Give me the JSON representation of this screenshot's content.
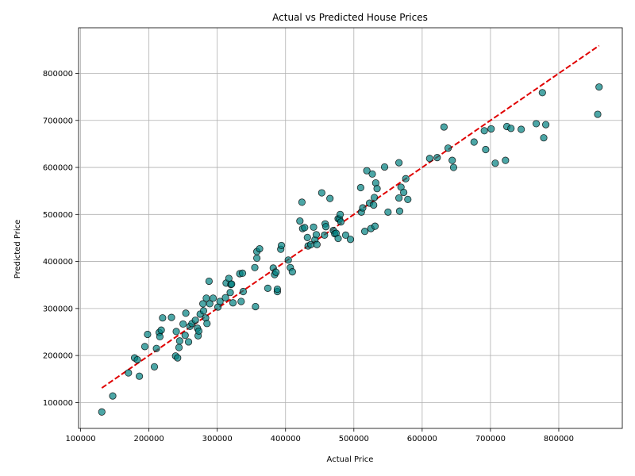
{
  "chart_data": {
    "type": "scatter",
    "title": "Actual vs Predicted House Prices",
    "xlabel": "Actual Price",
    "ylabel": "Predicted Price",
    "xlim": [
      97000,
      893000
    ],
    "ylim": [
      45000,
      897000
    ],
    "xticks": [
      100000,
      200000,
      300000,
      400000,
      500000,
      600000,
      700000,
      800000
    ],
    "yticks": [
      100000,
      200000,
      300000,
      400000,
      500000,
      600000,
      700000,
      800000
    ],
    "xtick_labels": [
      "100000",
      "200000",
      "300000",
      "400000",
      "500000",
      "600000",
      "700000",
      "800000"
    ],
    "ytick_labels": [
      "100000",
      "200000",
      "300000",
      "400000",
      "500000",
      "600000",
      "700000",
      "800000"
    ],
    "grid": true,
    "point_color": "#008080",
    "line_color": "#e00000",
    "reference_line": {
      "x": [
        131000,
        859000
      ],
      "y": [
        131000,
        859000
      ]
    },
    "points": [
      [
        131000,
        80000
      ],
      [
        147000,
        114000
      ],
      [
        170000,
        163000
      ],
      [
        179000,
        195000
      ],
      [
        183000,
        191000
      ],
      [
        186000,
        156000
      ],
      [
        194000,
        219000
      ],
      [
        198000,
        245000
      ],
      [
        208000,
        176000
      ],
      [
        211000,
        215000
      ],
      [
        215000,
        249000
      ],
      [
        216000,
        240000
      ],
      [
        218000,
        254000
      ],
      [
        220000,
        280000
      ],
      [
        233000,
        281000
      ],
      [
        239000,
        199000
      ],
      [
        240000,
        251000
      ],
      [
        242000,
        195000
      ],
      [
        244000,
        217000
      ],
      [
        245000,
        231000
      ],
      [
        250000,
        267000
      ],
      [
        253000,
        243000
      ],
      [
        254000,
        290000
      ],
      [
        258000,
        229000
      ],
      [
        260000,
        262000
      ],
      [
        263000,
        268000
      ],
      [
        268000,
        275000
      ],
      [
        271000,
        258000
      ],
      [
        272000,
        242000
      ],
      [
        273000,
        252000
      ],
      [
        275000,
        288000
      ],
      [
        279000,
        310000
      ],
      [
        280000,
        295000
      ],
      [
        283000,
        280000
      ],
      [
        284000,
        322000
      ],
      [
        285000,
        268000
      ],
      [
        288000,
        358000
      ],
      [
        289000,
        310000
      ],
      [
        294000,
        322000
      ],
      [
        301000,
        303000
      ],
      [
        304000,
        315000
      ],
      [
        312000,
        323000
      ],
      [
        313000,
        354000
      ],
      [
        317000,
        364000
      ],
      [
        319000,
        334000
      ],
      [
        320000,
        351000
      ],
      [
        321000,
        352000
      ],
      [
        323000,
        312000
      ],
      [
        333000,
        374000
      ],
      [
        335000,
        315000
      ],
      [
        337000,
        375000
      ],
      [
        338000,
        336000
      ],
      [
        355000,
        387000
      ],
      [
        356000,
        304000
      ],
      [
        358000,
        421000
      ],
      [
        358000,
        407000
      ],
      [
        362000,
        427000
      ],
      [
        374000,
        343000
      ],
      [
        382000,
        386000
      ],
      [
        384000,
        372000
      ],
      [
        386000,
        377000
      ],
      [
        388000,
        336000
      ],
      [
        388000,
        341000
      ],
      [
        393000,
        426000
      ],
      [
        394000,
        434000
      ],
      [
        404000,
        403000
      ],
      [
        407000,
        387000
      ],
      [
        410000,
        378000
      ],
      [
        421000,
        486000
      ],
      [
        424000,
        526000
      ],
      [
        425000,
        470000
      ],
      [
        428000,
        472000
      ],
      [
        432000,
        451000
      ],
      [
        433000,
        433000
      ],
      [
        437000,
        436000
      ],
      [
        441000,
        473000
      ],
      [
        443000,
        446000
      ],
      [
        445000,
        457000
      ],
      [
        446000,
        436000
      ],
      [
        453000,
        546000
      ],
      [
        457000,
        456000
      ],
      [
        458000,
        480000
      ],
      [
        459000,
        474000
      ],
      [
        465000,
        534000
      ],
      [
        470000,
        466000
      ],
      [
        472000,
        459000
      ],
      [
        474000,
        460000
      ],
      [
        477000,
        491000
      ],
      [
        477000,
        449000
      ],
      [
        479000,
        490000
      ],
      [
        480000,
        500000
      ],
      [
        481000,
        484000
      ],
      [
        488000,
        456000
      ],
      [
        495000,
        447000
      ],
      [
        510000,
        557000
      ],
      [
        511000,
        505000
      ],
      [
        513000,
        514000
      ],
      [
        516000,
        464000
      ],
      [
        519000,
        593000
      ],
      [
        523000,
        524000
      ],
      [
        525000,
        470000
      ],
      [
        527000,
        586000
      ],
      [
        529000,
        520000
      ],
      [
        530000,
        536000
      ],
      [
        531000,
        475000
      ],
      [
        532000,
        567000
      ],
      [
        534000,
        555000
      ],
      [
        545000,
        601000
      ],
      [
        550000,
        505000
      ],
      [
        566000,
        610000
      ],
      [
        566000,
        535000
      ],
      [
        567000,
        507000
      ],
      [
        569000,
        558000
      ],
      [
        573000,
        547000
      ],
      [
        576000,
        576000
      ],
      [
        579000,
        532000
      ],
      [
        611000,
        619000
      ],
      [
        622000,
        621000
      ],
      [
        632000,
        686000
      ],
      [
        638000,
        641000
      ],
      [
        644000,
        615000
      ],
      [
        646000,
        600000
      ],
      [
        676000,
        654000
      ],
      [
        691000,
        678000
      ],
      [
        693000,
        638000
      ],
      [
        701000,
        682000
      ],
      [
        707000,
        609000
      ],
      [
        722000,
        615000
      ],
      [
        724000,
        687000
      ],
      [
        730000,
        683000
      ],
      [
        745000,
        681000
      ],
      [
        767000,
        693000
      ],
      [
        776000,
        759000
      ],
      [
        778000,
        663000
      ],
      [
        781000,
        691000
      ],
      [
        857000,
        713000
      ],
      [
        859000,
        771000
      ]
    ]
  }
}
